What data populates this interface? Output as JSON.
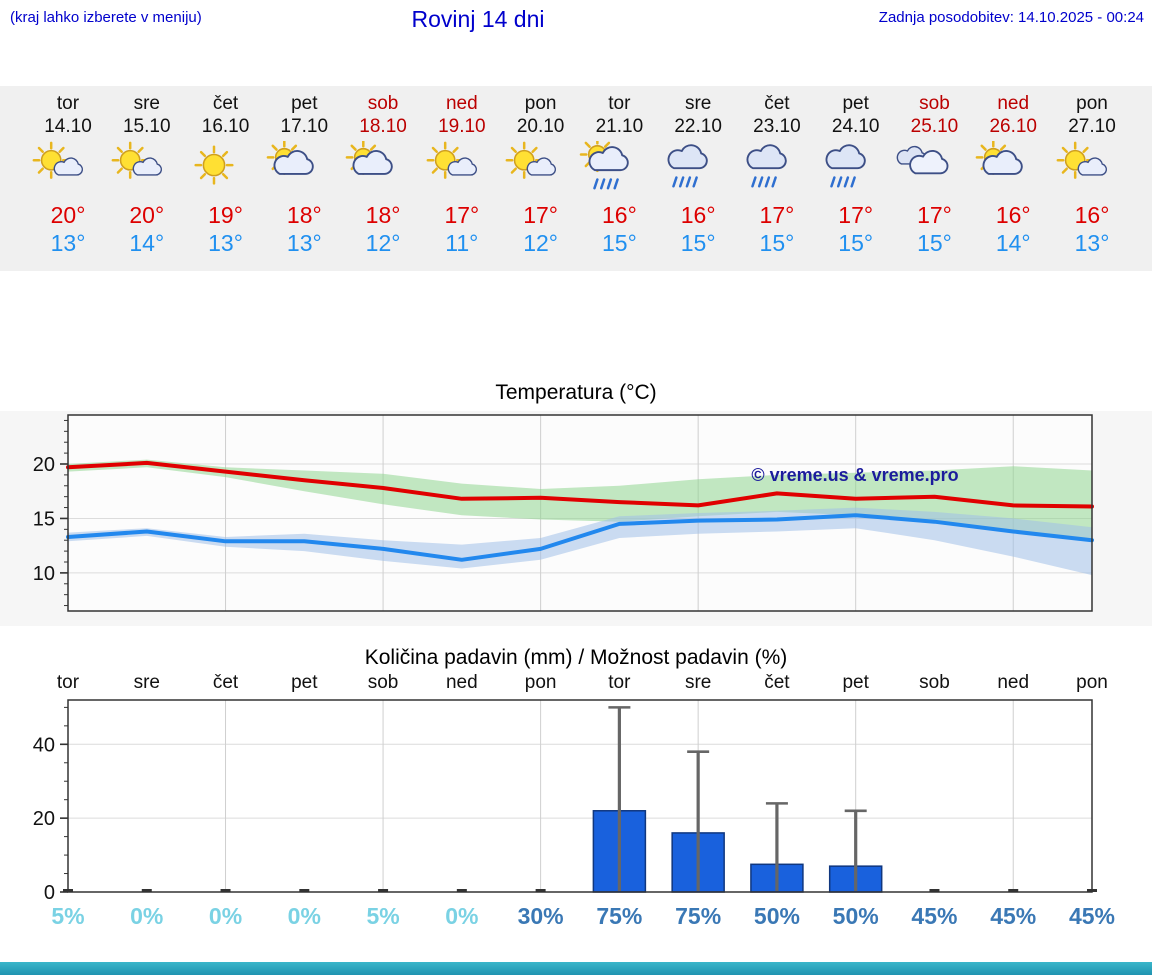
{
  "page": {
    "note_left": "(kraj lahko izberete v meniju)",
    "title": "Rovinj 14 dni",
    "last_update": "Zadnja posodobitev: 14.10.2025 - 00:24"
  },
  "colors": {
    "link_blue": "#0000cc",
    "weekend_red": "#bb0000",
    "high_red": "#dd0000",
    "low_blue": "#2090f0",
    "line_red": "#e00000",
    "line_blue": "#2288ee",
    "band_green": "#90d690",
    "band_blue": "#a0c0e8",
    "bar_blue": "#1961dd",
    "percent_low": "#7ad2e4",
    "percent_high": "#3a78b5"
  },
  "forecast_days": [
    {
      "name": "tor",
      "date": "14.10",
      "weekend": false,
      "icon": "sun-small-cloud",
      "high": "20°",
      "low": "13°"
    },
    {
      "name": "sre",
      "date": "15.10",
      "weekend": false,
      "icon": "sun-small-cloud",
      "high": "20°",
      "low": "14°"
    },
    {
      "name": "čet",
      "date": "16.10",
      "weekend": false,
      "icon": "sunny",
      "high": "19°",
      "low": "13°"
    },
    {
      "name": "pet",
      "date": "17.10",
      "weekend": false,
      "icon": "sun-cloud",
      "high": "18°",
      "low": "13°"
    },
    {
      "name": "sob",
      "date": "18.10",
      "weekend": true,
      "icon": "sun-cloud",
      "high": "18°",
      "low": "12°"
    },
    {
      "name": "ned",
      "date": "19.10",
      "weekend": true,
      "icon": "sun-small-cloud",
      "high": "17°",
      "low": "11°"
    },
    {
      "name": "pon",
      "date": "20.10",
      "weekend": false,
      "icon": "sun-small-cloud",
      "high": "17°",
      "low": "12°"
    },
    {
      "name": "tor",
      "date": "21.10",
      "weekend": false,
      "icon": "sun-rain",
      "high": "16°",
      "low": "15°"
    },
    {
      "name": "sre",
      "date": "22.10",
      "weekend": false,
      "icon": "rain",
      "high": "16°",
      "low": "15°"
    },
    {
      "name": "čet",
      "date": "23.10",
      "weekend": false,
      "icon": "rain",
      "high": "17°",
      "low": "15°"
    },
    {
      "name": "pet",
      "date": "24.10",
      "weekend": false,
      "icon": "rain",
      "high": "17°",
      "low": "15°"
    },
    {
      "name": "sob",
      "date": "25.10",
      "weekend": true,
      "icon": "cloudy",
      "high": "17°",
      "low": "15°"
    },
    {
      "name": "ned",
      "date": "26.10",
      "weekend": true,
      "icon": "sun-cloud",
      "high": "16°",
      "low": "14°"
    },
    {
      "name": "pon",
      "date": "27.10",
      "weekend": false,
      "icon": "sun-small-cloud",
      "high": "16°",
      "low": "13°"
    }
  ],
  "chart_data": [
    {
      "type": "line",
      "title": "Temperatura (°C)",
      "x_labels": [
        "tor 14.10",
        "sre 15.10",
        "čet 16.10",
        "pet 17.10",
        "sob 18.10",
        "ned 19.10",
        "pon 20.10",
        "tor 21.10",
        "sre 22.10",
        "čet 23.10",
        "pet 24.10",
        "sob 25.10",
        "ned 26.10",
        "pon 27.10"
      ],
      "ylim": [
        6.5,
        24.5
      ],
      "yticks": [
        10,
        15,
        20
      ],
      "grid": true,
      "watermark": "© vreme.us & vreme.pro",
      "series": [
        {
          "name": "max-temp",
          "color": "#e00000",
          "values": [
            19.7,
            20.1,
            19.3,
            18.5,
            17.8,
            16.8,
            16.9,
            16.5,
            16.2,
            17.3,
            16.8,
            17.0,
            16.2,
            16.1
          ]
        },
        {
          "name": "min-temp",
          "color": "#2288ee",
          "values": [
            13.3,
            13.8,
            12.9,
            12.9,
            12.2,
            11.2,
            12.2,
            14.5,
            14.8,
            14.9,
            15.3,
            14.7,
            13.8,
            13.0
          ]
        }
      ],
      "bands": [
        {
          "name": "max-temp-range",
          "color": "#90d690",
          "upper": [
            20.0,
            20.4,
            19.7,
            19.4,
            19.1,
            18.2,
            17.7,
            18.0,
            18.6,
            19.0,
            19.2,
            19.4,
            19.8,
            19.4
          ],
          "lower": [
            19.3,
            19.7,
            18.8,
            17.5,
            16.3,
            15.3,
            14.9,
            14.7,
            15.2,
            15.6,
            15.3,
            14.8,
            13.8,
            13.0
          ]
        },
        {
          "name": "min-temp-range",
          "color": "#a0c0e8",
          "upper": [
            13.7,
            14.1,
            13.3,
            13.6,
            13.0,
            12.6,
            13.2,
            15.2,
            15.5,
            15.7,
            16.0,
            15.6,
            15.0,
            14.2
          ],
          "lower": [
            12.9,
            13.4,
            12.4,
            12.0,
            11.1,
            10.4,
            11.2,
            13.2,
            13.6,
            13.8,
            14.1,
            13.0,
            11.5,
            9.8
          ]
        }
      ]
    },
    {
      "type": "bar",
      "title": "Količina padavin (mm) / Možnost padavin (%)",
      "categories": [
        "tor",
        "sre",
        "čet",
        "pet",
        "sob",
        "ned",
        "pon",
        "tor",
        "sre",
        "čet",
        "pet",
        "sob",
        "ned",
        "pon"
      ],
      "values_mm": [
        0,
        0,
        0,
        0,
        0,
        0,
        0,
        22,
        16,
        7.5,
        7,
        0,
        0,
        0
      ],
      "whisker_max_mm": [
        0,
        0,
        0,
        0,
        0,
        0,
        0,
        50,
        38,
        24,
        22,
        0,
        0,
        0
      ],
      "probabilities": [
        "5%",
        "0%",
        "0%",
        "0%",
        "5%",
        "0%",
        "30%",
        "75%",
        "75%",
        "50%",
        "50%",
        "45%",
        "45%",
        "45%"
      ],
      "ylim": [
        0,
        52
      ],
      "yticks": [
        0,
        20,
        40
      ],
      "grid": true
    }
  ]
}
